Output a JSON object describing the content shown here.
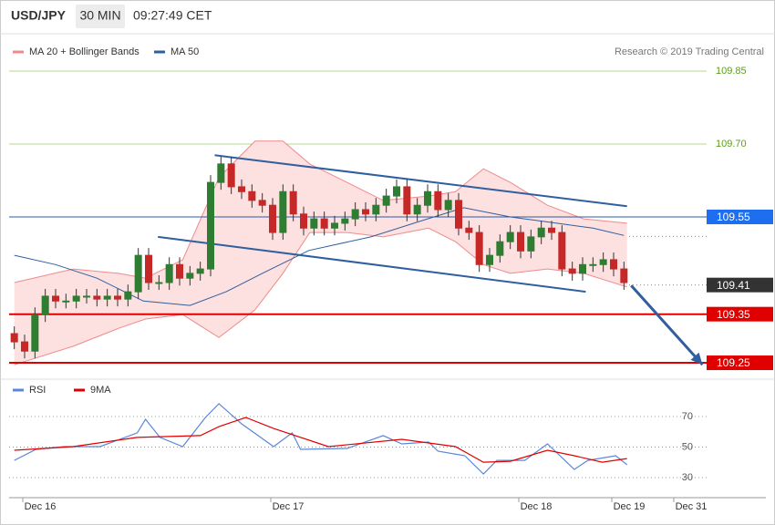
{
  "header": {
    "symbol": "USD/JPY",
    "interval": "30 MIN",
    "time": "09:27:49 CET"
  },
  "chart_data": [
    {
      "type": "candlestick",
      "copyright": "Research © 2019 Trading Central",
      "xlim": [
        -3,
        64.5
      ],
      "ylim": [
        109.23,
        109.87
      ],
      "yticks": [
        {
          "value": 109.7,
          "label": "109.70"
        },
        109.85
      ],
      "grid_color": "#b5d98a",
      "tick_color": "#5c9e1c",
      "up_color": "#2e7d32",
      "down_color": "#c62828",
      "x": [
        -2.5,
        -1.5,
        -0.5,
        0.5,
        1.5,
        2.5,
        3.5,
        4.5,
        5.5,
        6.5,
        7.5,
        8.5,
        9.5,
        10.5,
        11.5,
        12.5,
        13.5,
        14.5,
        15.5,
        16.5,
        17.5,
        18.5,
        19.5,
        20.5,
        21.5,
        22.5,
        23.5,
        24.5,
        25.5,
        26.5,
        27.5,
        28.5,
        29.5,
        30.5,
        31.5,
        32.5,
        33.5,
        34.5,
        35.5,
        36.5,
        37.5,
        38.5,
        39.5,
        40.5,
        41.5,
        42.5,
        43.5,
        44.5,
        45.5,
        46.5,
        47.5,
        48.5,
        49.5,
        50.5,
        51.5,
        52.5,
        53.5,
        54.5,
        55.5,
        56.5
      ],
      "open": [
        109.31,
        109.293,
        109.274,
        109.349,
        109.387,
        109.377,
        109.377,
        109.387,
        109.387,
        109.381,
        109.387,
        109.381,
        109.396,
        109.471,
        109.415,
        109.415,
        109.452,
        109.424,
        109.434,
        109.443,
        109.621,
        109.659,
        109.612,
        109.602,
        109.584,
        109.574,
        109.518,
        109.602,
        109.556,
        109.527,
        109.546,
        109.527,
        109.537,
        109.546,
        109.565,
        109.556,
        109.574,
        109.593,
        109.612,
        109.556,
        109.574,
        109.602,
        109.565,
        109.584,
        109.527,
        109.518,
        109.452,
        109.471,
        109.499,
        109.518,
        109.48,
        109.509,
        109.527,
        109.518,
        109.443,
        109.434,
        109.452,
        109.452,
        109.462,
        109.443
      ],
      "high": [
        109.325,
        109.308,
        109.364,
        109.402,
        109.402,
        109.392,
        109.402,
        109.402,
        109.402,
        109.402,
        109.402,
        109.411,
        109.486,
        109.486,
        109.43,
        109.467,
        109.467,
        109.449,
        109.458,
        109.636,
        109.674,
        109.674,
        109.627,
        109.617,
        109.599,
        109.589,
        109.617,
        109.617,
        109.571,
        109.561,
        109.561,
        109.552,
        109.561,
        109.58,
        109.58,
        109.589,
        109.608,
        109.627,
        109.627,
        109.589,
        109.617,
        109.617,
        109.599,
        109.599,
        109.542,
        109.533,
        109.486,
        109.514,
        109.533,
        109.533,
        109.524,
        109.542,
        109.542,
        109.533,
        109.458,
        109.467,
        109.467,
        109.477,
        109.477,
        109.458
      ],
      "low": [
        109.278,
        109.259,
        109.259,
        109.334,
        109.362,
        109.362,
        109.362,
        109.372,
        109.366,
        109.366,
        109.366,
        109.366,
        109.381,
        109.4,
        109.4,
        109.4,
        109.409,
        109.409,
        109.419,
        109.428,
        109.606,
        109.597,
        109.587,
        109.569,
        109.559,
        109.503,
        109.503,
        109.541,
        109.512,
        109.512,
        109.512,
        109.512,
        109.522,
        109.531,
        109.541,
        109.541,
        109.559,
        109.578,
        109.541,
        109.541,
        109.559,
        109.55,
        109.55,
        109.512,
        109.503,
        109.437,
        109.437,
        109.456,
        109.484,
        109.465,
        109.465,
        109.494,
        109.503,
        109.428,
        109.419,
        109.419,
        109.437,
        109.437,
        109.428,
        109.4
      ],
      "close": [
        109.293,
        109.274,
        109.349,
        109.387,
        109.377,
        109.377,
        109.387,
        109.387,
        109.381,
        109.387,
        109.381,
        109.396,
        109.471,
        109.415,
        109.415,
        109.452,
        109.424,
        109.434,
        109.443,
        109.621,
        109.659,
        109.612,
        109.602,
        109.584,
        109.574,
        109.518,
        109.602,
        109.556,
        109.527,
        109.546,
        109.527,
        109.537,
        109.546,
        109.565,
        109.556,
        109.574,
        109.593,
        109.612,
        109.556,
        109.574,
        109.602,
        109.565,
        109.584,
        109.527,
        109.518,
        109.452,
        109.471,
        109.499,
        109.518,
        109.48,
        109.509,
        109.527,
        109.518,
        109.443,
        109.434,
        109.452,
        109.452,
        109.462,
        109.443,
        109.415
      ],
      "series": [
        {
          "name": "MA 20 + Bollinger Bands",
          "color": "#f08a8a",
          "fill": "#fde0e0",
          "x": [
            -2.5,
            3.2,
            7.6,
            10.2,
            13.8,
            17.3,
            20.8,
            23.5,
            26.1,
            29.7,
            33.2,
            37.6,
            40.2,
            42.9,
            45.5,
            49.1,
            52.6,
            56.8
          ],
          "upper": [
            109.415,
            109.443,
            109.434,
            109.424,
            109.462,
            109.631,
            109.706,
            109.706,
            109.659,
            109.621,
            109.584,
            109.593,
            109.602,
            109.649,
            109.621,
            109.574,
            109.546,
            109.537
          ],
          "lower": [
            109.246,
            109.284,
            109.321,
            109.34,
            109.349,
            109.302,
            109.359,
            109.434,
            109.518,
            109.518,
            109.509,
            109.527,
            109.499,
            109.452,
            109.434,
            109.443,
            109.434,
            109.406
          ]
        },
        {
          "name": "MA 50",
          "color": "#2f5f9e",
          "x": [
            -2.5,
            1.5,
            5.5,
            10,
            14.5,
            18,
            21.5,
            26,
            32,
            37.5,
            41,
            45.5,
            50,
            53.5,
            56.5
          ],
          "values": [
            109.471,
            109.452,
            109.424,
            109.377,
            109.368,
            109.396,
            109.434,
            109.481,
            109.509,
            109.546,
            109.569,
            109.55,
            109.537,
            109.527,
            109.512
          ]
        }
      ],
      "channel": {
        "color": "#2f5f9e",
        "lines": [
          {
            "x": [
              16.9,
              56.8
            ],
            "values": [
              109.677,
              109.572
            ]
          },
          {
            "x": [
              11.4,
              52.8
            ],
            "values": [
              109.509,
              109.396
            ]
          }
        ]
      },
      "arrow": {
        "color": "#2f5f9e",
        "x": [
          57.2,
          64.1
        ],
        "values": [
          109.409,
          109.246
        ]
      },
      "levels": [
        {
          "value": 109.55,
          "color": "#2b5ca8",
          "box": "#1e6ff0",
          "style": "solid"
        },
        {
          "value": 109.41,
          "color": "#888888",
          "box": "#333333",
          "style": "dotted"
        },
        {
          "value": 109.35,
          "color": "#e00000",
          "box": "#e00000",
          "style": "solid"
        },
        {
          "value": 109.25,
          "color": "#e00000",
          "box": "#e00000",
          "style": "solid"
        },
        {
          "value": 109.51,
          "color": "#888888",
          "style": "dotted"
        }
      ]
    },
    {
      "type": "line",
      "xlim": [
        -3,
        64.5
      ],
      "ylim": [
        20,
        80
      ],
      "yticks": [
        30,
        50,
        70
      ],
      "tick_color": "#555555",
      "xticks": [
        {
          "value": 0,
          "label": "Dec 16"
        },
        {
          "value": 24,
          "label": "Dec 17"
        },
        {
          "value": 48,
          "label": "Dec 18"
        },
        {
          "value": 57,
          "label": "Dec 19"
        },
        {
          "value": 63,
          "label": "Dec 31"
        }
      ],
      "series": [
        {
          "name": "RSI",
          "color": "#5b86d9",
          "x": [
            -2.5,
            -0.4,
            2.3,
            5.8,
            9.4,
            10.2,
            11.6,
            13.8,
            16,
            17.3,
            19.5,
            22.6,
            24.4,
            25.2,
            29.7,
            33.2,
            35,
            37.6,
            38.5,
            41.1,
            42.9,
            44.2,
            46.9,
            49.1,
            51.7,
            53,
            55.7,
            56.8
          ],
          "values": [
            41.3,
            48.5,
            50.3,
            50.3,
            59.3,
            68.2,
            56.3,
            50.3,
            69.4,
            78.4,
            65.2,
            50.3,
            59.3,
            48.5,
            49.1,
            57.5,
            52.1,
            53.3,
            47.3,
            44.3,
            32.4,
            41.3,
            41.3,
            52.1,
            35.4,
            41.3,
            44.3,
            38.4
          ]
        },
        {
          "name": "9MA",
          "color": "#e00000",
          "x": [
            -2.5,
            3.2,
            9.4,
            15.5,
            17.3,
            19.9,
            22.6,
            27.9,
            35,
            40.2,
            42.9,
            45.5,
            49.1,
            51.7,
            54.4,
            56.8
          ],
          "values": [
            47.9,
            50.3,
            56.3,
            57.5,
            63.4,
            69.4,
            62.2,
            50.3,
            55.1,
            50.3,
            40.1,
            40.7,
            47.9,
            44.3,
            40.1,
            42.5
          ]
        }
      ]
    }
  ]
}
